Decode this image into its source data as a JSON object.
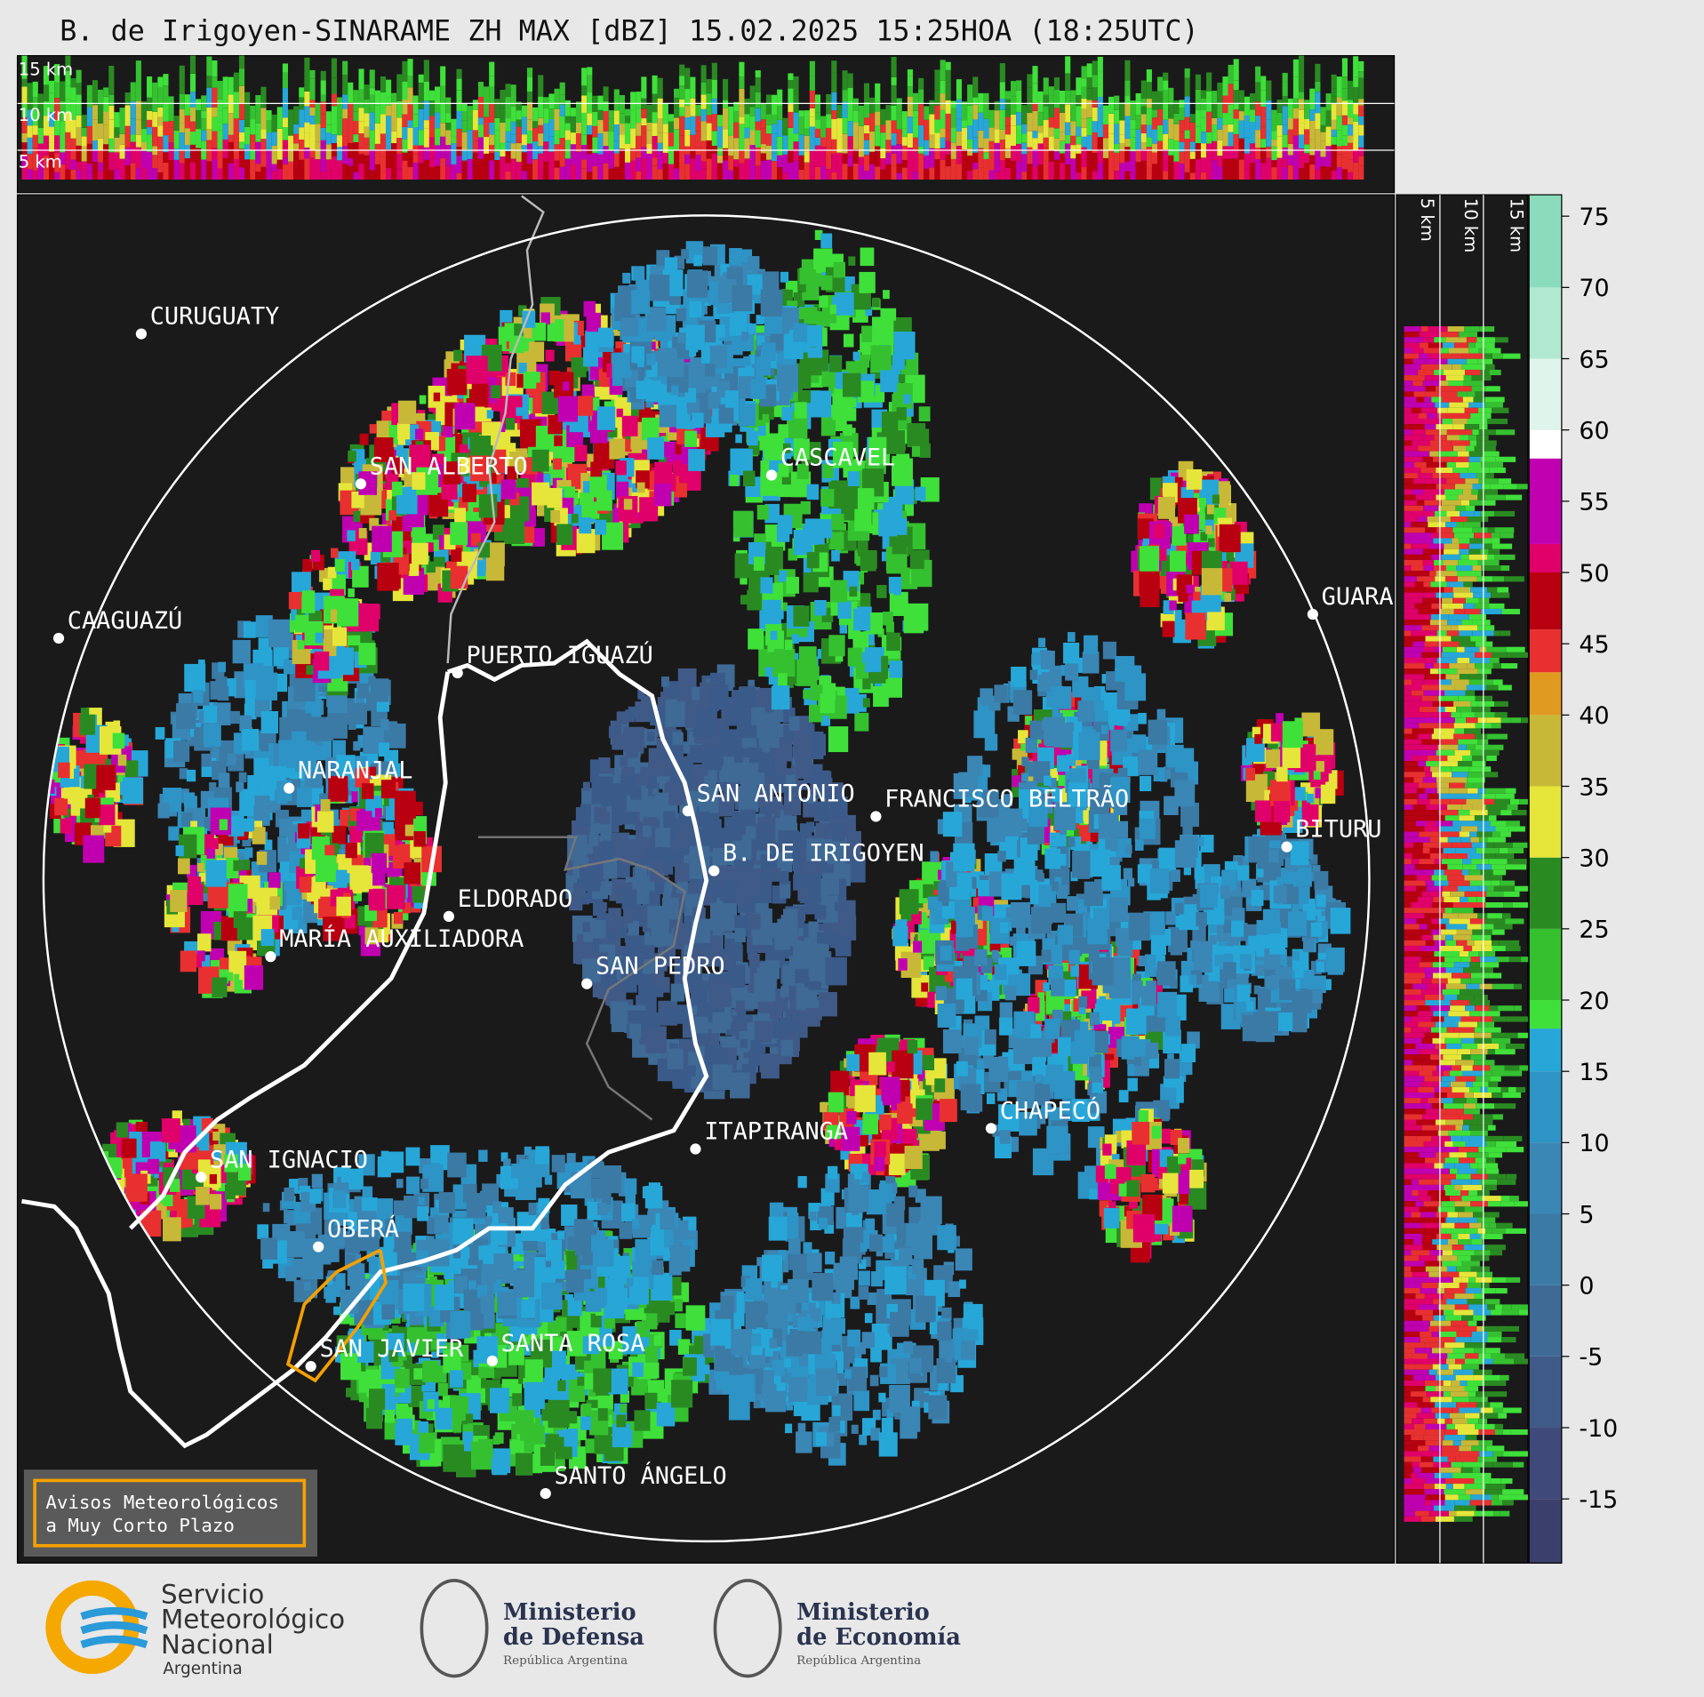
{
  "title": "B. de Irigoyen-SINARAME ZH MAX [dBZ] 15.02.2025 15:25HOA (18:25UTC)",
  "top_section": {
    "labels": [
      "15 km",
      "10 km",
      "5 km"
    ]
  },
  "right_section": {
    "labels": [
      "5 km",
      "10 km",
      "15 km"
    ]
  },
  "cities": [
    {
      "label": "CURUGUATY"
    },
    {
      "label": "SAN ALBERTO"
    },
    {
      "label": "CASCAVEL"
    },
    {
      "label": "CAAGUAZÚ"
    },
    {
      "label": "GUARA"
    },
    {
      "label": "PUERTO IGUAZÚ"
    },
    {
      "label": "NARANJAL"
    },
    {
      "label": "SAN ANTONIO"
    },
    {
      "label": "FRANCISCO BELTRÃO"
    },
    {
      "label": "BITURU"
    },
    {
      "label": "B. DE IRIGOYEN"
    },
    {
      "label": "ELDORADO"
    },
    {
      "label": "MARÍA AUXILIADORA"
    },
    {
      "label": "SAN PEDRO"
    },
    {
      "label": "CHAPECÓ"
    },
    {
      "label": "ITAPIRANGA"
    },
    {
      "label": "SAN IGNACIO"
    },
    {
      "label": "OBERÁ"
    },
    {
      "label": "SAN JAVIER"
    },
    {
      "label": "SANTA ROSA"
    },
    {
      "label": "SANTO ÁNGELO"
    }
  ],
  "colorbar": {
    "lim": [
      -19.5,
      76.5
    ],
    "ticks": [
      -15,
      -10,
      -5,
      0,
      5,
      10,
      15,
      20,
      25,
      30,
      35,
      40,
      45,
      50,
      55,
      60,
      65,
      70,
      75
    ],
    "colormap": [
      {
        "from": -19.5,
        "to": -15,
        "color": "#3b3f6b"
      },
      {
        "from": -15,
        "to": -10,
        "color": "#3f4a7a"
      },
      {
        "from": -10,
        "to": -5,
        "color": "#405a88"
      },
      {
        "from": -5,
        "to": 0,
        "color": "#3e6a95"
      },
      {
        "from": 0,
        "to": 5,
        "color": "#3a7aa5"
      },
      {
        "from": 5,
        "to": 10,
        "color": "#3a86b5"
      },
      {
        "from": 10,
        "to": 15,
        "color": "#2e93c5"
      },
      {
        "from": 15,
        "to": 18,
        "color": "#27a7d8"
      },
      {
        "from": 18,
        "to": 20,
        "color": "#3fe03a"
      },
      {
        "from": 20,
        "to": 25,
        "color": "#35c030"
      },
      {
        "from": 25,
        "to": 30,
        "color": "#2a8a22"
      },
      {
        "from": 30,
        "to": 35,
        "color": "#e6e63a"
      },
      {
        "from": 35,
        "to": 40,
        "color": "#c8b838"
      },
      {
        "from": 40,
        "to": 43,
        "color": "#e09a20"
      },
      {
        "from": 43,
        "to": 46,
        "color": "#e83030"
      },
      {
        "from": 46,
        "to": 50,
        "color": "#b80010"
      },
      {
        "from": 50,
        "to": 52,
        "color": "#e0006a"
      },
      {
        "from": 52,
        "to": 58,
        "color": "#c000b0"
      },
      {
        "from": 58,
        "to": 60,
        "color": "#ffffff"
      },
      {
        "from": 60,
        "to": 65,
        "color": "#dff4ea"
      },
      {
        "from": 65,
        "to": 70,
        "color": "#b0e8d0"
      },
      {
        "from": 70,
        "to": 76.5,
        "color": "#8adcbc"
      }
    ]
  },
  "warning_box": {
    "lines": [
      "Avisos Meteorológicos",
      "a Muy Corto Plazo"
    ]
  },
  "logos": {
    "smn": [
      "Servicio",
      "Meteorológico",
      "Nacional",
      "Argentina"
    ],
    "defensa": [
      "Ministerio",
      "de Defensa",
      "República Argentina"
    ],
    "economia": [
      "Ministerio",
      "de Economía",
      "República Argentina"
    ]
  }
}
